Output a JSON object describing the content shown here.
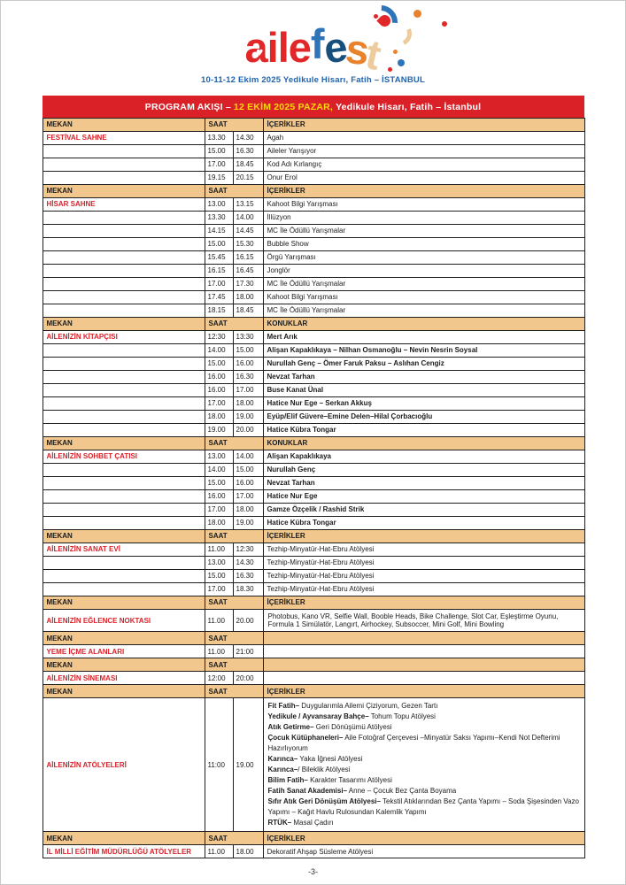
{
  "colors": {
    "red": "#DB2128",
    "yellow": "#FFD60A",
    "tan": "#F2C78D",
    "blue": "#2163AE",
    "venue_red": "#D9232B"
  },
  "logo": {
    "parts": [
      {
        "text": "aile",
        "color": "#E12728"
      },
      {
        "text": "f",
        "color": "#2E74B8"
      },
      {
        "text": "e",
        "color": "#17507D"
      },
      {
        "text": "s",
        "color": "#E8832C"
      },
      {
        "text": "t",
        "color": "#EDCB9D"
      }
    ],
    "subtitle": "10-11-12 Ekim 2025 Yedikule Hisarı, Fatih – İSTANBUL"
  },
  "title_bar": {
    "prefix": "PROGRAM AKIŞI – ",
    "highlight": "12 EKİM 2025 PAZAR,",
    "suffix": " Yedikule Hisarı, Fatih – İstanbul"
  },
  "table": {
    "columns": {
      "mekan": "MEKAN",
      "saat": "SAAT"
    },
    "sections": [
      {
        "content_header": "İÇERİKLER",
        "venue": "FESTİVAL SAHNE",
        "rows": [
          {
            "start": "13.30",
            "end": "14.30",
            "content": "Agah"
          },
          {
            "start": "15.00",
            "end": "16.30",
            "content": "Aileler Yarışıyor"
          },
          {
            "start": "17.00",
            "end": "18.45",
            "content": "Kod Adı Kırlangıç"
          },
          {
            "start": "19.15",
            "end": "20.15",
            "content": "Onur Erol"
          }
        ]
      },
      {
        "content_header": "İÇERİKLER",
        "venue": "HİSAR SAHNE",
        "rows": [
          {
            "start": "13.00",
            "end": "13.15",
            "content": "Kahoot Bilgi Yarışması"
          },
          {
            "start": "13.30",
            "end": "14.00",
            "content": "İllüzyon"
          },
          {
            "start": "14.15",
            "end": "14.45",
            "content": "MC İle Ödüllü Yarışmalar"
          },
          {
            "start": "15.00",
            "end": "15.30",
            "content": "Bubble Show"
          },
          {
            "start": "15.45",
            "end": "16.15",
            "content": "Örgü Yarışması"
          },
          {
            "start": "16.15",
            "end": "16.45",
            "content": "Jonglör"
          },
          {
            "start": "17.00",
            "end": "17.30",
            "content": "MC İle Ödüllü Yarışmalar"
          },
          {
            "start": "17.45",
            "end": "18.00",
            "content": "Kahoot Bilgi Yarışması"
          },
          {
            "start": "18.15",
            "end": "18.45",
            "content": "MC İle Ödüllü Yarışmalar"
          }
        ]
      },
      {
        "content_header": "KONUKLAR",
        "venue": "AİLENİZİN KİTAPÇISI",
        "bold_content": true,
        "rows": [
          {
            "start": "12:30",
            "end": "13:30",
            "content": "Mert Arık"
          },
          {
            "start": "14.00",
            "end": "15.00",
            "content": "Alişan Kapaklıkaya – Nilhan Osmanoğlu – Nevin Nesrin Soysal"
          },
          {
            "start": "15.00",
            "end": "16.00",
            "content": "Nurullah Genç – Ömer Faruk Paksu – Aslıhan Cengiz"
          },
          {
            "start": "16.00",
            "end": "16.30",
            "content": "Nevzat Tarhan"
          },
          {
            "start": "16.00",
            "end": "17.00",
            "content": "Buse Kanat Ünal"
          },
          {
            "start": "17.00",
            "end": "18.00",
            "content": "Hatice Nur Ege – Serkan Akkuş"
          },
          {
            "start": "18.00",
            "end": "19.00",
            "content": "Eyüp/Elif Güvere–Emine Delen–Hilal Çorbacıoğlu"
          },
          {
            "start": "19.00",
            "end": "20.00",
            "content": "Hatice Kübra Tongar"
          }
        ]
      },
      {
        "content_header": "KONUKLAR",
        "venue": "AİLENİZİN SOHBET ÇATISI",
        "bold_content": true,
        "rows": [
          {
            "start": "13.00",
            "end": "14.00",
            "content": "Alişan Kapaklıkaya"
          },
          {
            "start": "14.00",
            "end": "15.00",
            "content": "Nurullah Genç"
          },
          {
            "start": "15.00",
            "end": "16.00",
            "content": "Nevzat Tarhan"
          },
          {
            "start": "16.00",
            "end": "17.00",
            "content": "Hatice Nur Ege"
          },
          {
            "start": "17.00",
            "end": "18.00",
            "content": "Gamze Özçelik / Rashid Strik"
          },
          {
            "start": "18.00",
            "end": "19.00",
            "content": "Hatice Kübra Tongar"
          }
        ]
      },
      {
        "content_header": "İÇERİKLER",
        "venue": "AİLENİZİN SANAT EVİ",
        "rows": [
          {
            "start": "11.00",
            "end": "12:30",
            "content": "Tezhip-Minyatür-Hat-Ebru Atölyesi"
          },
          {
            "start": "13.00",
            "end": "14.30",
            "content": "Tezhip-Minyatür-Hat-Ebru Atölyesi"
          },
          {
            "start": "15.00",
            "end": "16.30",
            "content": "Tezhip-Minyatür-Hat-Ebru Atölyesi"
          },
          {
            "start": "17.00",
            "end": "18.30",
            "content": "Tezhip-Minyatür-Hat-Ebru Atölyesi"
          }
        ]
      },
      {
        "content_header": "İÇERİKLER",
        "venue": "AİLENİZİN EĞLENCE NOKTASI",
        "tall": true,
        "rows": [
          {
            "start": "11.00",
            "end": "20.00",
            "content": "Photobus, Kano VR, Selfie Wall, Booble Heads, Bike Challenge, Slot Car, Eşleştirme Oyunu, Formula 1 Simülatör, Langırt, Airhockey, Subsoccer, Mini Golf, Mini Bowling"
          }
        ]
      },
      {
        "content_header": "",
        "venue": "YEME İÇME ALANLARI",
        "rows": [
          {
            "start": "11.00",
            "end": "21:00",
            "content": ""
          }
        ]
      },
      {
        "content_header": "",
        "venue": "AİLENİZİN SİNEMASI",
        "rows": [
          {
            "start": "12:00",
            "end": "20:00",
            "content": ""
          }
        ]
      },
      {
        "content_header": "İÇERİKLER",
        "venue": "AİLENİZİN ATÖLYELERİ",
        "rows": [
          {
            "start": "11:00",
            "end": "19.00",
            "items": [
              {
                "b": "Fit Fatih–",
                "t": " Duygularımla Ailemi Çiziyorum, Gezen Tartı"
              },
              {
                "b": "Yedikule / Ayvansaray Bahçe–",
                "t": " Tohum Topu Atölyesi"
              },
              {
                "b": "Atık Getirme–",
                "t": " Geri Dönüşümü Atölyesi"
              },
              {
                "b": "Çocuk Kütüphaneleri–",
                "t": " Aile Fotoğraf Çerçevesi –Minyatür Saksı Yapımı–Kendi Not Defterimi Hazırlıyorum"
              },
              {
                "b": "Karınca–",
                "t": " Yaka İğnesi Atölyesi"
              },
              {
                "b": "Karınca–",
                "t": "/ Bileklik Atölyesi"
              },
              {
                "b": "Bilim Fatih–",
                "t": " Karakter Tasarımı Atölyesi"
              },
              {
                "b": "Fatih Sanat Akademisi–",
                "t": " Anne – Çocuk Bez Çanta Boyama"
              },
              {
                "b": "Sıfır Atık Geri Dönüşüm Atölyesi–",
                "t": " Tekstil Atıklarından Bez Çanta Yapımı – Soda Şişesinden Vazo Yapımı – Kağıt Havlu Rulosundan Kalemlik Yapımı"
              },
              {
                "b": "RTÜK–",
                "t": " Masal Çadırı"
              }
            ]
          }
        ]
      },
      {
        "content_header": "İÇERİKLER",
        "venue": "İL MİLLİ EĞİTİM MÜDÜRLÜĞÜ ATÖLYELER",
        "rows": [
          {
            "start": "11.00",
            "end": "18.00",
            "content": "Dekoratif Ahşap Süsleme Atölyesi"
          }
        ]
      }
    ]
  },
  "footer": {
    "page_number": "-3-"
  }
}
